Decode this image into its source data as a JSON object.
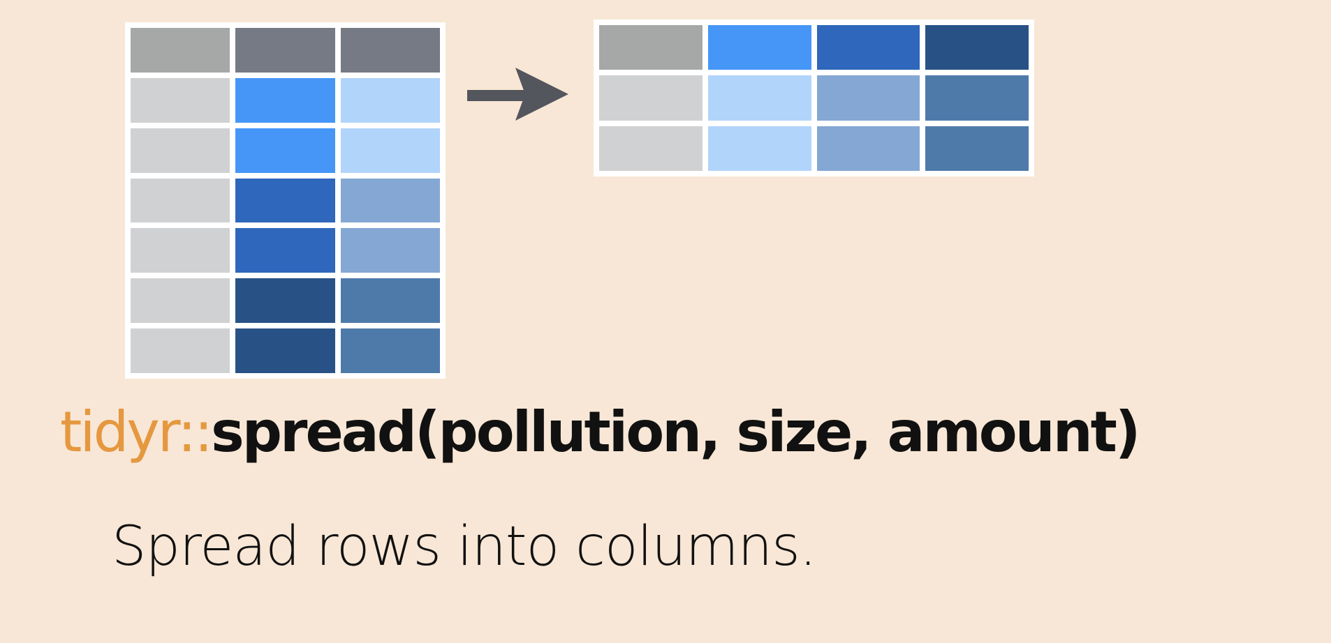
{
  "colors": {
    "background": "#f8e7d6",
    "border": "#ffffff",
    "package_text": "#e5983f",
    "function_text": "#111111",
    "arrow": "#53565c"
  },
  "tables": {
    "long": {
      "rows": [
        [
          "#a6a8a8",
          "#767a84",
          "#767a84"
        ],
        [
          "#d0d1d3",
          "#4596f7",
          "#b1d4fb"
        ],
        [
          "#d0d1d3",
          "#4596f7",
          "#b1d4fb"
        ],
        [
          "#d0d1d3",
          "#2e67bb",
          "#84a8d3"
        ],
        [
          "#d0d1d3",
          "#2e67bb",
          "#84a8d3"
        ],
        [
          "#d0d1d3",
          "#285286",
          "#4e7aaa"
        ],
        [
          "#d0d1d3",
          "#285286",
          "#4e7aaa"
        ]
      ]
    },
    "wide": {
      "rows": [
        [
          "#a6a8a8",
          "#4596f7",
          "#2e67bb",
          "#285286"
        ],
        [
          "#d0d1d3",
          "#b1d4fb",
          "#84a8d3",
          "#4e7aaa"
        ],
        [
          "#d0d1d3",
          "#b1d4fb",
          "#84a8d3",
          "#4e7aaa"
        ]
      ]
    }
  },
  "arrow_icon": "right-arrow-icon",
  "code": {
    "package": "tidyr::",
    "call": "spread(pollution, size, amount)"
  },
  "caption": "Spread rows into columns."
}
